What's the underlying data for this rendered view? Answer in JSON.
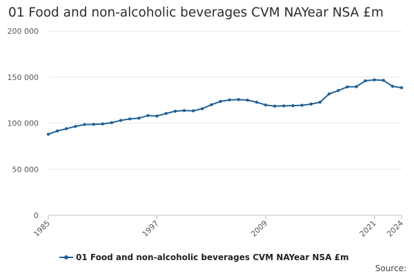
{
  "chart_data": {
    "type": "line",
    "title": "01 Food and non-alcoholic beverages CVM NAYear NSA £m",
    "xlabel": "",
    "ylabel": "",
    "series_name": "01 Food and non-alcoholic beverages CVM NAYear NSA £m",
    "x": [
      1985,
      1986,
      1987,
      1988,
      1989,
      1990,
      1991,
      1992,
      1993,
      1994,
      1995,
      1996,
      1997,
      1998,
      1999,
      2000,
      2001,
      2002,
      2003,
      2004,
      2005,
      2006,
      2007,
      2008,
      2009,
      2010,
      2011,
      2012,
      2013,
      2014,
      2015,
      2016,
      2017,
      2018,
      2019,
      2020,
      2021,
      2022,
      2023,
      2024
    ],
    "values": [
      88000,
      91500,
      94000,
      96500,
      98500,
      98700,
      99200,
      100500,
      103000,
      104600,
      105400,
      108300,
      107700,
      110500,
      113000,
      113700,
      113400,
      115700,
      120000,
      123600,
      125200,
      125600,
      125000,
      122800,
      119700,
      118500,
      118800,
      119000,
      119400,
      120700,
      122800,
      131800,
      135300,
      139400,
      139600,
      146000,
      147000,
      146500,
      140000,
      138500
    ],
    "x_ticks": [
      "1985",
      "1997",
      "2009",
      "2021",
      "2024"
    ],
    "y_ticks": [
      "0",
      "50 000",
      "100 000",
      "150 000",
      "200 000"
    ],
    "ylim": [
      0,
      200000
    ],
    "xlim": [
      1985,
      2024
    ],
    "grid": "horizontal",
    "legend_position": "bottom",
    "color": "#206095"
  },
  "footer": {
    "source_label": "Source:"
  }
}
